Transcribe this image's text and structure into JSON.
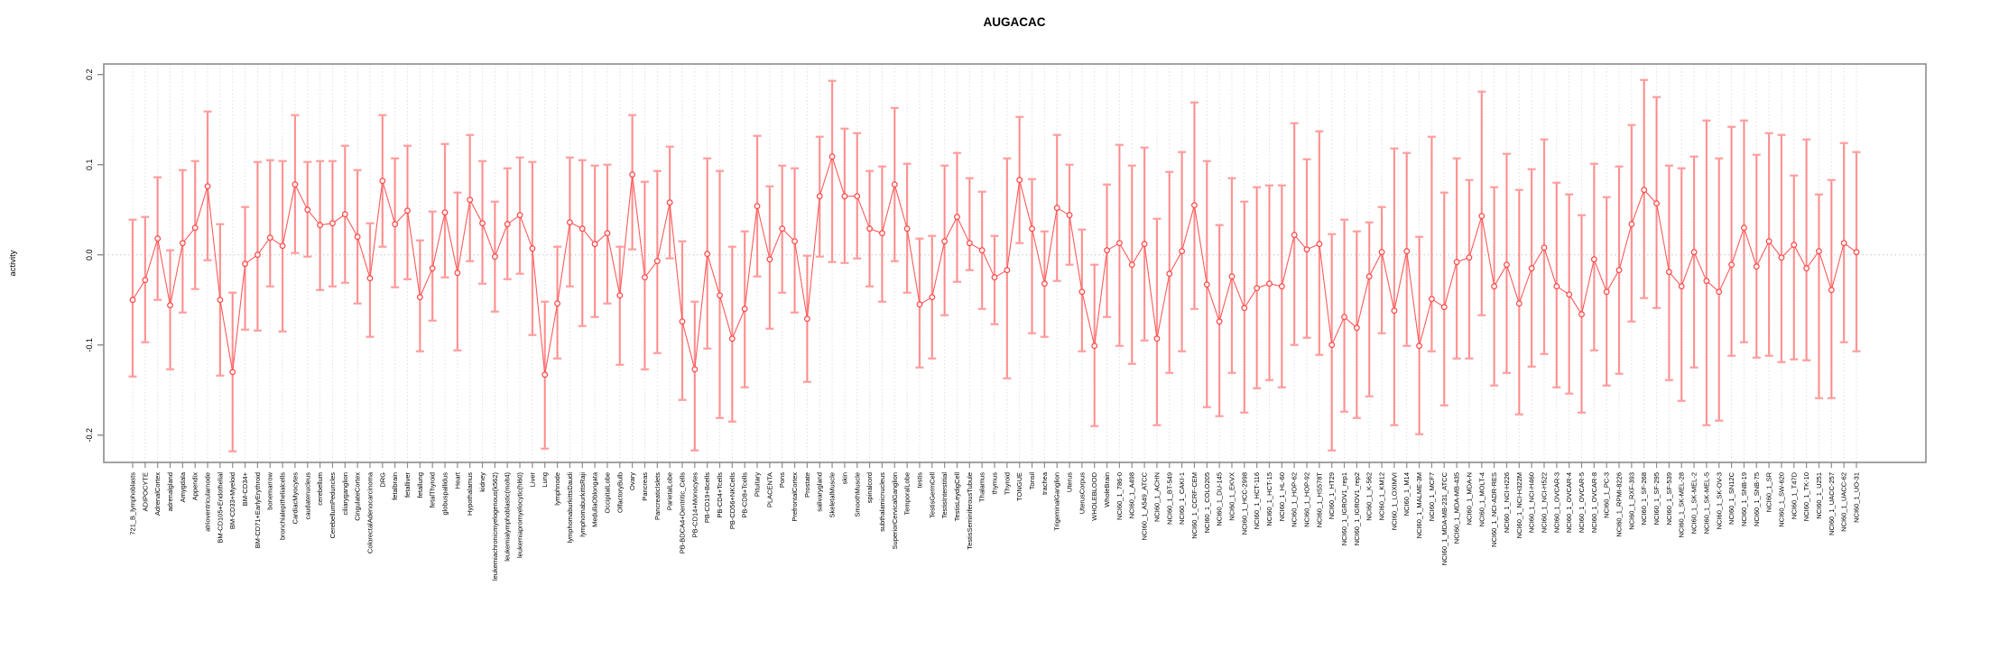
{
  "title": "AUGACAC",
  "chart_data": {
    "type": "line",
    "subtype": "points-with-error-bars",
    "title": "AUGACAC",
    "xlabel": "",
    "ylabel": "activity",
    "ylim": [
      -0.2,
      0.2
    ],
    "yticks": [
      0.2,
      0.1,
      0.0,
      -0.1,
      -0.2
    ],
    "grid": "vertical dotted gridline per category, dotted horizontal line at 0",
    "legend_position": "none",
    "colors": {
      "error_bar": "#ff9d9d",
      "error_bar_core": "#ff6b6b",
      "series_line": "#ff5a5a",
      "point_stroke": "#ff4747",
      "grid_line": "#e0e0e0",
      "zero_line": "#c8c8c8",
      "box": "#8c8c8c",
      "text": "#000000"
    },
    "categories": [
      "721_B_lymphoblasts",
      "ADIPOCYTE",
      "AdrenalCortex",
      "adrenalgland",
      "Amygdala",
      "Appendix",
      "atrioventricularnode",
      "BM-CD105+Endothelial",
      "BM-CD33+Myeloid",
      "BM-CD34+",
      "BM-CD71+EarlyErythroid",
      "bonemarrow",
      "bronchialepithelialcells",
      "CardiacMyocytes",
      "caudatenucleus",
      "cerebellum",
      "CerebellumPeduncles",
      "ciliaryganglion",
      "CingulateCortex",
      "ColorectalAdenocarcinoma",
      "DRG",
      "fetalbrain",
      "fetalliver",
      "fetallung",
      "fetalThyroid",
      "globuspallidus",
      "Heart",
      "Hypothalamus",
      "kidney",
      "leukemiachronicmyelogenous(k562)",
      "leukemialymphoblastic(molt4)",
      "leukemiapromyelocytic(hl60)",
      "Liver",
      "Lung",
      "lymphnode",
      "lymphomaburkittsDaudi",
      "lymphomaburkittsRaji",
      "MedullaOblongata",
      "OccipitalLobe",
      "OlfactoryBulb",
      "Ovary",
      "Pancreas",
      "PancreaticIslets",
      "ParietalLobe",
      "PB-BDCA4+Dentritic_Cells",
      "PB-CD14+Monocytes",
      "PB-CD19+Bcells",
      "PB-CD4+Tcells",
      "PB-CD56+NKCells",
      "PB-CD8+Tcells",
      "Pituitary",
      "PLACENTA",
      "Pons",
      "PrefrontalCortex",
      "Prostate",
      "salivarygland",
      "SkeletalMuscle",
      "skin",
      "SmoothMuscle",
      "spinalcord",
      "subthalamicnucleus",
      "SuperiorCervicalGanglion",
      "TemporalLobe",
      "testis",
      "TestisGermCell",
      "TestisInterstitial",
      "TestisLeydigCell",
      "TestisSeminiferousTubule",
      "Thalamus",
      "thymus",
      "Thyroid",
      "TONGUE",
      "Tonsil",
      "trachea",
      "TrigeminalGanglion",
      "Uterus",
      "UterusCorpus",
      "WHOLEBLOOD",
      "WholeBrain",
      "NCI60_1_786-0",
      "NCI60_1_A498",
      "NCI60_1_A549_ATCC",
      "NCI60_1_ACHN",
      "NCI60_1_BT-549",
      "NCI60_1_CAKI-1",
      "NCI60_1_CCRF-CEM",
      "NCI60_1_COLO205",
      "NCI60_1_DU-145",
      "NCI60_1_EKVX",
      "NCI60_1_HCC-2998",
      "NCI60_1_HCT-116",
      "NCI60_1_HCT-15",
      "NCI60_1_HL-60",
      "NCI60_1_HOP-62",
      "NCI60_1_HOP-92",
      "NCI60_1_HS578T",
      "NCI60_1_HT29",
      "NCI60_1_IGROV1_rep1",
      "NCI60_1_IGROV1_rep2",
      "NCI60_1_K-562",
      "NCI60_1_KM12",
      "NCI60_1_LOXIMVI",
      "NCI60_1_M14",
      "NCI60_1_MALME-3M",
      "NCI60_1_MCF7",
      "NCI60_1_MDA-MB-231_ATCC",
      "NCI60_1_MDA-MB-435",
      "NCI60_1_MDA-N",
      "NCI60_1_MOLT-4",
      "NCI60_1_NCI-ADR-RES",
      "NCI60_1_NCI-H226",
      "NCI60_1_NCI-H322M",
      "NCI60_1_NCI-H460",
      "NCI60_1_NCI-H522",
      "NCI60_1_OVCAR-3",
      "NCI60_1_OVCAR-4",
      "NCI60_1_OVCAR-5",
      "NCI60_1_OVCAR-8",
      "NCI60_1_PC-3",
      "NCI60_1_RPMI-8226",
      "NCI60_1_RXF-393",
      "NCI60_1_SF-268",
      "NCI60_1_SF-295",
      "NCI60_1_SF-539",
      "NCI60_1_SK-MEL-28",
      "NCI60_1_SK-MEL-2",
      "NCI60_1_SK-MEL-5",
      "NCI60_1_SK-OV-3",
      "NCI60_1_SN12C",
      "NCI60_1_SNB-19",
      "NCI60_1_SNB-75",
      "NCI60_1_SR",
      "NCI60_1_SW-620",
      "NCI60_1_T47D",
      "NCI60_1_TK-10",
      "NCI60_1_U251",
      "NCI60_1_UACC-257",
      "NCI60_1_UACC-62",
      "NCI60_1_UO-31"
    ],
    "values": [
      -0.05,
      -0.028,
      0.018,
      -0.056,
      0.013,
      0.03,
      0.076,
      -0.05,
      -0.13,
      -0.01,
      0.0,
      0.019,
      0.01,
      0.078,
      0.05,
      0.033,
      0.035,
      0.045,
      0.02,
      -0.026,
      0.082,
      0.034,
      0.049,
      -0.047,
      -0.015,
      0.047,
      -0.02,
      0.061,
      0.035,
      -0.002,
      0.034,
      0.044,
      0.007,
      -0.133,
      -0.054,
      0.036,
      0.029,
      0.012,
      0.024,
      -0.045,
      0.089,
      -0.025,
      -0.007,
      0.058,
      -0.074,
      -0.127,
      0.001,
      -0.045,
      -0.093,
      -0.06,
      0.054,
      -0.005,
      0.029,
      0.015,
      -0.071,
      0.065,
      0.109,
      0.065,
      0.065,
      0.029,
      0.024,
      0.078,
      0.029,
      -0.055,
      -0.047,
      0.015,
      0.042,
      0.013,
      0.005,
      -0.025,
      -0.017,
      0.083,
      0.029,
      -0.032,
      0.052,
      0.044,
      -0.041,
      -0.101,
      0.005,
      0.013,
      -0.011,
      0.012,
      -0.093,
      -0.021,
      0.004,
      0.055,
      -0.033,
      -0.074,
      -0.024,
      -0.059,
      -0.037,
      -0.032,
      -0.035,
      0.022,
      0.006,
      0.012,
      -0.1,
      -0.069,
      -0.081,
      -0.024,
      0.003,
      -0.062,
      0.004,
      -0.101,
      -0.049,
      -0.058,
      -0.008,
      -0.003,
      0.043,
      -0.035,
      -0.011,
      -0.054,
      -0.015,
      0.008,
      -0.035,
      -0.044,
      -0.066,
      -0.005,
      -0.041,
      -0.017,
      0.034,
      0.072,
      0.057,
      -0.019,
      -0.035,
      0.003,
      -0.029,
      -0.041,
      -0.011,
      0.03,
      -0.013,
      0.015,
      -0.003,
      0.011,
      -0.015,
      0.004,
      -0.039,
      0.013,
      0.003
    ],
    "upper": [
      0.039,
      0.042,
      0.086,
      0.005,
      0.094,
      0.104,
      0.159,
      0.034,
      -0.042,
      0.053,
      0.103,
      0.105,
      0.104,
      0.155,
      0.103,
      0.104,
      0.104,
      0.121,
      0.094,
      0.035,
      0.155,
      0.107,
      0.121,
      0.016,
      0.048,
      0.123,
      0.069,
      0.133,
      0.104,
      0.059,
      0.096,
      0.108,
      0.103,
      -0.052,
      0.009,
      0.108,
      0.105,
      0.099,
      0.1,
      0.009,
      0.155,
      0.081,
      0.093,
      0.12,
      0.015,
      -0.052,
      0.107,
      0.093,
      0.009,
      0.026,
      0.132,
      0.076,
      0.099,
      0.096,
      -0.001,
      0.131,
      0.193,
      0.14,
      0.135,
      0.093,
      0.098,
      0.163,
      0.101,
      0.018,
      0.021,
      0.099,
      0.113,
      0.085,
      0.07,
      0.021,
      0.107,
      0.153,
      0.084,
      0.026,
      0.133,
      0.1,
      0.028,
      -0.011,
      0.078,
      0.122,
      0.099,
      0.119,
      0.04,
      0.092,
      0.114,
      0.169,
      0.104,
      0.033,
      0.085,
      0.059,
      0.075,
      0.077,
      0.077,
      0.146,
      0.106,
      0.137,
      0.023,
      0.039,
      0.026,
      0.036,
      0.053,
      0.118,
      0.113,
      0.02,
      0.131,
      0.069,
      0.107,
      0.083,
      0.181,
      0.075,
      0.112,
      0.072,
      0.095,
      0.128,
      0.08,
      0.067,
      0.044,
      0.101,
      0.064,
      0.098,
      0.144,
      0.194,
      0.175,
      0.099,
      0.096,
      0.109,
      0.149,
      0.107,
      0.142,
      0.149,
      0.111,
      0.135,
      0.133,
      0.088,
      0.128,
      0.067,
      0.083,
      0.124,
      0.114
    ],
    "lower": [
      -0.135,
      -0.097,
      -0.05,
      -0.127,
      -0.064,
      -0.038,
      -0.006,
      -0.134,
      -0.218,
      -0.083,
      -0.084,
      -0.035,
      -0.085,
      0.002,
      -0.002,
      -0.039,
      -0.035,
      -0.031,
      -0.054,
      -0.091,
      0.009,
      -0.036,
      -0.027,
      -0.107,
      -0.073,
      -0.025,
      -0.106,
      -0.007,
      -0.032,
      -0.063,
      -0.027,
      -0.021,
      -0.089,
      -0.215,
      -0.115,
      -0.035,
      -0.079,
      -0.069,
      -0.054,
      -0.122,
      0.006,
      -0.127,
      -0.109,
      -0.004,
      -0.161,
      -0.217,
      -0.104,
      -0.181,
      -0.185,
      -0.147,
      -0.024,
      -0.082,
      -0.042,
      -0.064,
      -0.141,
      -0.002,
      -0.008,
      -0.009,
      -0.004,
      -0.035,
      -0.052,
      -0.007,
      -0.042,
      -0.125,
      -0.115,
      -0.067,
      -0.03,
      -0.017,
      -0.06,
      -0.077,
      -0.137,
      0.013,
      -0.087,
      -0.091,
      -0.029,
      -0.011,
      -0.107,
      -0.19,
      -0.069,
      -0.101,
      -0.121,
      -0.095,
      -0.189,
      -0.131,
      -0.107,
      -0.06,
      -0.169,
      -0.179,
      -0.131,
      -0.175,
      -0.148,
      -0.139,
      -0.147,
      -0.1,
      -0.092,
      -0.111,
      -0.217,
      -0.174,
      -0.181,
      -0.157,
      -0.087,
      -0.189,
      -0.101,
      -0.199,
      -0.107,
      -0.167,
      -0.115,
      -0.115,
      -0.067,
      -0.145,
      -0.131,
      -0.177,
      -0.124,
      -0.11,
      -0.147,
      -0.154,
      -0.175,
      -0.106,
      -0.145,
      -0.132,
      -0.074,
      -0.048,
      -0.059,
      -0.139,
      -0.162,
      -0.125,
      -0.189,
      -0.184,
      -0.112,
      -0.097,
      -0.114,
      -0.112,
      -0.119,
      -0.116,
      -0.117,
      -0.159,
      -0.159,
      -0.097,
      -0.107
    ]
  }
}
